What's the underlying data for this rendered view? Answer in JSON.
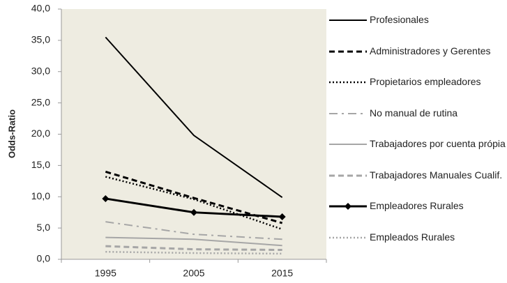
{
  "chart_data": {
    "type": "line",
    "ylabel": "Odds-Ratio",
    "categories": [
      "1995",
      "2005",
      "2015"
    ],
    "ylim": [
      0,
      40
    ],
    "yticks": [
      {
        "value": 0,
        "label": "0,0"
      },
      {
        "value": 5,
        "label": "5,0"
      },
      {
        "value": 10,
        "label": "10,0"
      },
      {
        "value": 15,
        "label": "15,0"
      },
      {
        "value": 20,
        "label": "20,0"
      },
      {
        "value": 25,
        "label": "25,0"
      },
      {
        "value": 30,
        "label": "30,0"
      },
      {
        "value": 35,
        "label": "35,0"
      },
      {
        "value": 40,
        "label": "40,0"
      }
    ],
    "grid": false,
    "legend": "right",
    "series": [
      {
        "name": "Profesionales",
        "color": "#000000",
        "dash": "solid",
        "values": [
          35.5,
          19.8,
          9.9
        ]
      },
      {
        "name": "Administradores y Gerentes",
        "color": "#000000",
        "dash": "dash",
        "values": [
          14.0,
          9.8,
          5.8
        ]
      },
      {
        "name": "Propietarios empleadores",
        "color": "#000000",
        "dash": "dot",
        "values": [
          13.2,
          9.6,
          4.8
        ]
      },
      {
        "name": "No manual de rutina",
        "color": "#a6a6a6",
        "dash": "dashdot",
        "values": [
          6.0,
          4.0,
          3.2
        ]
      },
      {
        "name": "Trabajadores por cuenta própia",
        "color": "#a6a6a6",
        "dash": "solid",
        "values": [
          3.5,
          3.2,
          2.2
        ]
      },
      {
        "name": "Trabajadores Manuales Cualif.",
        "color": "#a6a6a6",
        "dash": "dash",
        "values": [
          2.1,
          1.6,
          1.5
        ]
      },
      {
        "name": "Empleadores Rurales",
        "color": "#000000",
        "dash": "solid",
        "marker": "diamond",
        "values": [
          9.7,
          7.5,
          6.8
        ]
      },
      {
        "name": "Empleados Rurales",
        "color": "#a6a6a6",
        "dash": "dot",
        "values": [
          1.2,
          1.0,
          0.9
        ]
      }
    ]
  }
}
